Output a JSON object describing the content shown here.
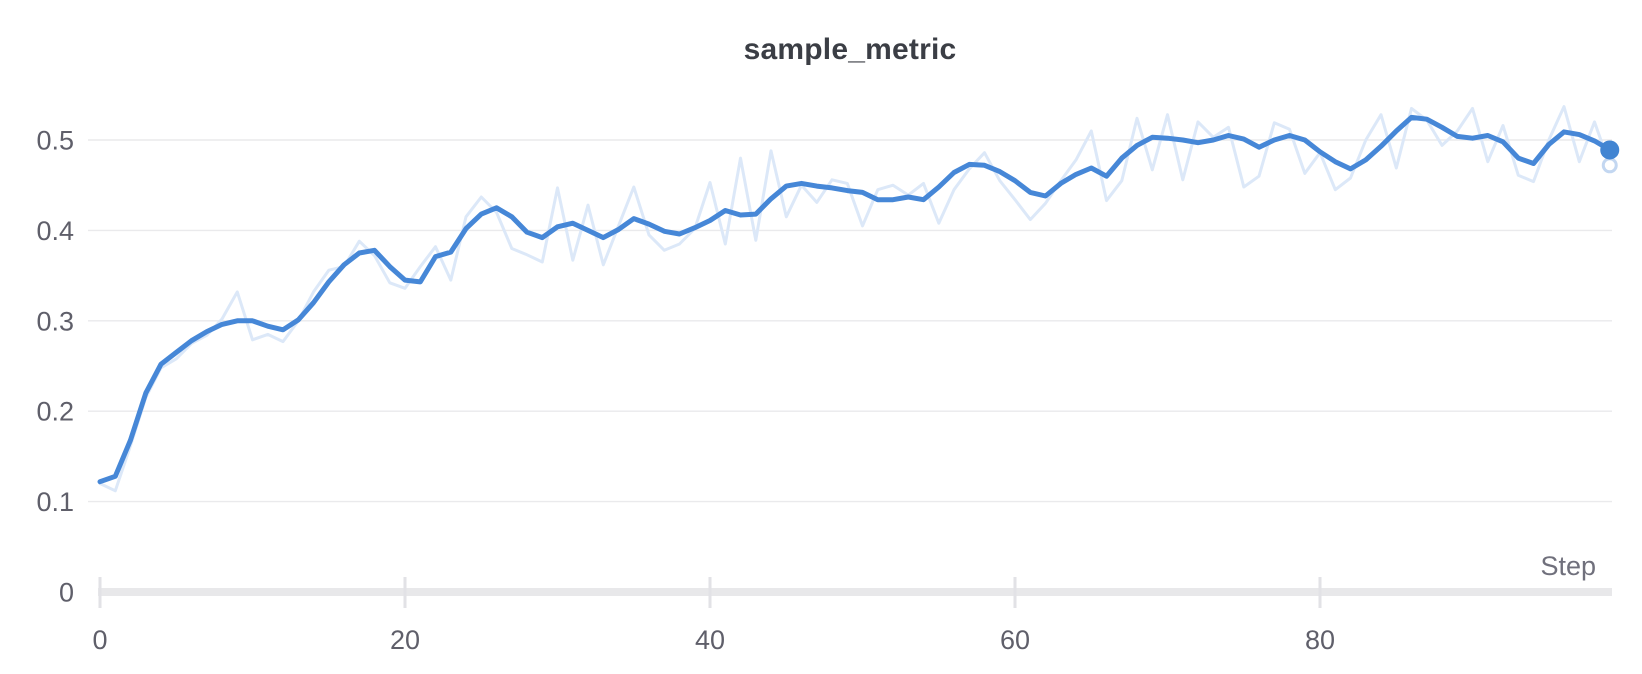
{
  "chart_data": {
    "type": "line",
    "title": "sample_metric",
    "xlabel": "Step",
    "ylabel": "",
    "steps": {
      "start": 0,
      "end": 99,
      "increment": 1
    },
    "x_ticks": [
      0,
      20,
      40,
      60,
      80
    ],
    "x_tick_labels": [
      "0",
      "20",
      "40",
      "60",
      "80"
    ],
    "y_ticks": [
      0,
      0.1,
      0.2,
      0.3,
      0.4,
      0.5
    ],
    "y_tick_labels": [
      "0",
      "0.1",
      "0.2",
      "0.3",
      "0.4",
      "0.5"
    ],
    "ylim": [
      0,
      0.55
    ],
    "grid": "horizontal",
    "legend_position": "none",
    "series": [
      {
        "name": "original",
        "role": "raw-unsmoothed",
        "color": "#dce8f8",
        "values": [
          0.12,
          0.112,
          0.162,
          0.215,
          0.248,
          0.258,
          0.275,
          0.284,
          0.302,
          0.332,
          0.279,
          0.285,
          0.277,
          0.3,
          0.332,
          0.356,
          0.36,
          0.388,
          0.372,
          0.342,
          0.336,
          0.36,
          0.382,
          0.345,
          0.415,
          0.437,
          0.42,
          0.38,
          0.373,
          0.365,
          0.447,
          0.367,
          0.428,
          0.362,
          0.405,
          0.448,
          0.395,
          0.378,
          0.385,
          0.402,
          0.453,
          0.385,
          0.48,
          0.389,
          0.488,
          0.415,
          0.45,
          0.431,
          0.456,
          0.452,
          0.405,
          0.445,
          0.45,
          0.439,
          0.452,
          0.408,
          0.445,
          0.468,
          0.486,
          0.455,
          0.434,
          0.412,
          0.43,
          0.455,
          0.478,
          0.51,
          0.433,
          0.455,
          0.524,
          0.467,
          0.528,
          0.456,
          0.52,
          0.503,
          0.514,
          0.448,
          0.46,
          0.519,
          0.512,
          0.463,
          0.486,
          0.445,
          0.458,
          0.5,
          0.528,
          0.469,
          0.535,
          0.522,
          0.494,
          0.51,
          0.535,
          0.476,
          0.516,
          0.461,
          0.454,
          0.5,
          0.537,
          0.476,
          0.52,
          0.472
        ]
      },
      {
        "name": "smoothed",
        "role": "smoothed-main",
        "color": "#4687d7",
        "values": [
          0.122,
          0.128,
          0.168,
          0.22,
          0.252,
          0.265,
          0.278,
          0.288,
          0.296,
          0.3,
          0.3,
          0.294,
          0.29,
          0.301,
          0.32,
          0.343,
          0.362,
          0.375,
          0.378,
          0.36,
          0.345,
          0.343,
          0.371,
          0.376,
          0.402,
          0.418,
          0.425,
          0.415,
          0.398,
          0.392,
          0.404,
          0.408,
          0.4,
          0.392,
          0.401,
          0.413,
          0.407,
          0.399,
          0.396,
          0.403,
          0.411,
          0.422,
          0.417,
          0.418,
          0.435,
          0.449,
          0.452,
          0.449,
          0.447,
          0.444,
          0.442,
          0.434,
          0.434,
          0.437,
          0.434,
          0.448,
          0.464,
          0.473,
          0.472,
          0.465,
          0.455,
          0.442,
          0.438,
          0.452,
          0.462,
          0.469,
          0.46,
          0.48,
          0.494,
          0.503,
          0.502,
          0.5,
          0.497,
          0.5,
          0.505,
          0.501,
          0.492,
          0.5,
          0.505,
          0.5,
          0.487,
          0.476,
          0.468,
          0.478,
          0.493,
          0.51,
          0.525,
          0.523,
          0.514,
          0.504,
          0.502,
          0.505,
          0.498,
          0.48,
          0.474,
          0.495,
          0.509,
          0.506,
          0.499,
          0.489
        ]
      }
    ],
    "endpoint_marker": {
      "step": 99,
      "value": 0.489,
      "color": "#4285d2"
    },
    "raw_endpoint_marker": {
      "step": 99,
      "value": 0.472,
      "ring_color": "#c3d7f1"
    }
  },
  "colors": {
    "background": "#ffffff",
    "gridline": "#eaeaec",
    "axis_bar": "#e8e8ea",
    "tick_mark": "#e2e2e6",
    "tick_label": "#5f5f6a",
    "axis_title": "#70707c",
    "chart_title": "#3b3e45"
  }
}
